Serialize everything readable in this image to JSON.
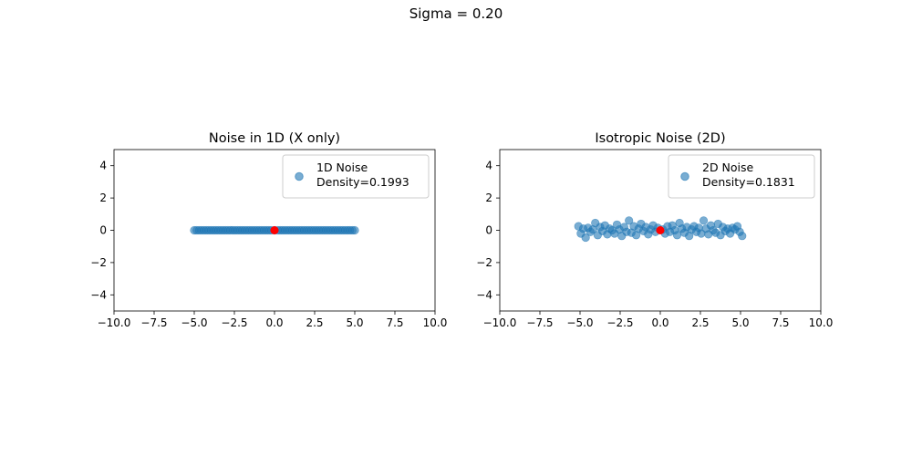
{
  "figure": {
    "suptitle": "Sigma = 0.20"
  },
  "chart_data": [
    {
      "type": "scatter",
      "title": "Noise in 1D (X only)",
      "xlim": [
        -10,
        10
      ],
      "ylim": [
        -5,
        5
      ],
      "xticks": [
        "−10.0",
        "−7.5",
        "−5.0",
        "−2.5",
        "0.0",
        "2.5",
        "5.0",
        "7.5",
        "10.0"
      ],
      "xtick_values": [
        -10,
        -7.5,
        -5,
        -2.5,
        0,
        2.5,
        5,
        7.5,
        10
      ],
      "yticks": [
        "−4",
        "−2",
        "0",
        "2",
        "4"
      ],
      "ytick_values": [
        -4,
        -2,
        0,
        2,
        4
      ],
      "grid": false,
      "legend_position": "top-right",
      "legend_label_lines": [
        "1D Noise",
        "Density=0.1993"
      ],
      "point_color": "#1f77b4",
      "point_alpha": 0.6,
      "marker_color": "#ff0000",
      "marker": [
        0,
        0
      ],
      "points": {
        "x": [
          -5.0,
          -4.85,
          -4.7,
          -4.55,
          -4.4,
          -4.25,
          -4.1,
          -3.95,
          -3.8,
          -3.65,
          -3.5,
          -3.35,
          -3.2,
          -3.05,
          -2.9,
          -2.75,
          -2.6,
          -2.45,
          -2.3,
          -2.15,
          -2.0,
          -1.85,
          -1.7,
          -1.55,
          -1.4,
          -1.25,
          -1.1,
          -0.95,
          -0.8,
          -0.65,
          -0.5,
          -0.35,
          -0.2,
          0.0,
          0.2,
          0.35,
          0.5,
          0.65,
          0.8,
          0.95,
          1.1,
          1.25,
          1.4,
          1.55,
          1.7,
          1.85,
          2.0,
          2.15,
          2.3,
          2.45,
          2.6,
          2.75,
          2.9,
          3.05,
          3.2,
          3.35,
          3.5,
          3.65,
          3.8,
          3.95,
          4.1,
          4.25,
          4.4,
          4.55,
          4.7,
          4.85,
          5.0
        ],
        "y": [
          0,
          0,
          0,
          0,
          0,
          0,
          0,
          0,
          0,
          0,
          0,
          0,
          0,
          0,
          0,
          0,
          0,
          0,
          0,
          0,
          0,
          0,
          0,
          0,
          0,
          0,
          0,
          0,
          0,
          0,
          0,
          0,
          0,
          0,
          0,
          0,
          0,
          0,
          0,
          0,
          0,
          0,
          0,
          0,
          0,
          0,
          0,
          0,
          0,
          0,
          0,
          0,
          0,
          0,
          0,
          0,
          0,
          0,
          0,
          0,
          0,
          0,
          0,
          0,
          0,
          0,
          0
        ]
      }
    },
    {
      "type": "scatter",
      "title": "Isotropic Noise (2D)",
      "xlim": [
        -10,
        10
      ],
      "ylim": [
        -5,
        5
      ],
      "xticks": [
        "−10.0",
        "−7.5",
        "−5.0",
        "−2.5",
        "0.0",
        "2.5",
        "5.0",
        "7.5",
        "10.0"
      ],
      "xtick_values": [
        -10,
        -7.5,
        -5,
        -2.5,
        0,
        2.5,
        5,
        7.5,
        10
      ],
      "yticks": [
        "−4",
        "−2",
        "0",
        "2",
        "4"
      ],
      "ytick_values": [
        -4,
        -2,
        0,
        2,
        4
      ],
      "grid": false,
      "legend_position": "top-right",
      "legend_label_lines": [
        "2D Noise",
        "Density=0.1831"
      ],
      "point_color": "#1f77b4",
      "point_alpha": 0.6,
      "marker_color": "#ff0000",
      "marker": [
        0,
        0
      ],
      "points": {
        "x": [
          -5.1,
          -4.95,
          -4.8,
          -4.65,
          -4.5,
          -4.35,
          -4.2,
          -4.05,
          -3.9,
          -3.75,
          -3.6,
          -3.45,
          -3.3,
          -3.15,
          -3.0,
          -2.85,
          -2.7,
          -2.55,
          -2.4,
          -2.25,
          -2.1,
          -1.95,
          -1.8,
          -1.65,
          -1.5,
          -1.35,
          -1.2,
          -1.05,
          -0.9,
          -0.75,
          -0.6,
          -0.45,
          -0.3,
          -0.15,
          0.15,
          0.3,
          0.45,
          0.6,
          0.75,
          0.9,
          1.05,
          1.2,
          1.35,
          1.5,
          1.65,
          1.8,
          1.95,
          2.1,
          2.25,
          2.4,
          2.55,
          2.7,
          2.85,
          3.0,
          3.15,
          3.3,
          3.45,
          3.6,
          3.75,
          3.9,
          4.05,
          4.2,
          4.35,
          4.5,
          4.65,
          4.8,
          4.95,
          5.1
        ],
        "y": [
          0.25,
          -0.2,
          0.1,
          -0.45,
          0.15,
          -0.1,
          0.05,
          0.45,
          -0.3,
          0.2,
          -0.05,
          0.3,
          -0.25,
          0.1,
          0.0,
          -0.2,
          0.35,
          0.05,
          -0.35,
          0.2,
          -0.1,
          0.6,
          -0.15,
          0.25,
          -0.3,
          0.1,
          0.4,
          -0.05,
          0.2,
          -0.25,
          0.05,
          0.3,
          -0.1,
          0.15,
          0.05,
          -0.2,
          0.25,
          -0.1,
          0.3,
          0.0,
          -0.3,
          0.45,
          0.1,
          -0.15,
          0.2,
          -0.35,
          0.05,
          0.25,
          -0.1,
          0.15,
          -0.2,
          0.6,
          0.1,
          -0.25,
          0.3,
          0.0,
          -0.15,
          0.4,
          -0.3,
          0.2,
          -0.05,
          0.1,
          -0.2,
          0.15,
          0.05,
          0.25,
          -0.1,
          -0.35
        ]
      }
    }
  ]
}
